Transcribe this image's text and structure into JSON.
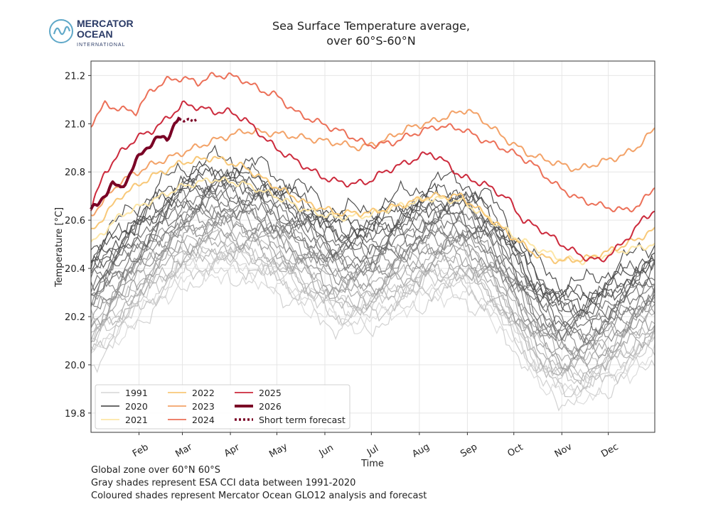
{
  "logo": {
    "line1": "MERCATOR",
    "line2": "OCEAN",
    "line3": "INTERNATIONAL",
    "color": "#2a3a66",
    "mark_color": "#5fa8c8"
  },
  "footnotes": [
    "Global zone over 60°N 60°S",
    "Gray shades represent ESA CCI data between 1991-2020",
    "Coloured shades represent Mercator Ocean GLO12 analysis and forecast"
  ],
  "chart_data": {
    "type": "line",
    "title": "Sea Surface Temperature average,",
    "subtitle": "over 60°S-60°N",
    "xlabel": "Time",
    "ylabel": "Temperature [°C]",
    "x_unit": "day of year",
    "xlim": [
      1,
      365
    ],
    "ylim": [
      19.72,
      21.26
    ],
    "yticks": [
      19.8,
      20.0,
      20.2,
      20.4,
      20.6,
      20.8,
      21.0,
      21.2
    ],
    "months": [
      {
        "label": "Feb",
        "day": 32
      },
      {
        "label": "Mar",
        "day": 60
      },
      {
        "label": "Apr",
        "day": 91
      },
      {
        "label": "May",
        "day": 121
      },
      {
        "label": "Jun",
        "day": 152
      },
      {
        "label": "Jul",
        "day": 182
      },
      {
        "label": "Aug",
        "day": 213
      },
      {
        "label": "Sep",
        "day": 244
      },
      {
        "label": "Oct",
        "day": 274
      },
      {
        "label": "Nov",
        "day": 305
      },
      {
        "label": "Dec",
        "day": 335
      }
    ],
    "grid": true,
    "legend_position": "lower-left",
    "legend": [
      {
        "label": "1991",
        "color": "#dcdcdc",
        "style": "solid"
      },
      {
        "label": "2020",
        "color": "#555555",
        "style": "solid"
      },
      {
        "label": "2021",
        "color": "#fde6a6",
        "style": "solid"
      },
      {
        "label": "2022",
        "color": "#f8c878",
        "style": "solid"
      },
      {
        "label": "2023",
        "color": "#f3a268",
        "style": "solid"
      },
      {
        "label": "2024",
        "color": "#ec7058",
        "style": "solid"
      },
      {
        "label": "2025",
        "color": "#cc2a3c",
        "style": "solid"
      },
      {
        "label": "2026",
        "color": "#7a0025",
        "style": "thick"
      },
      {
        "label": "Short term forecast",
        "color": "#7a0025",
        "style": "dotted"
      }
    ],
    "gray_years": {
      "first_year": 1991,
      "last_year": 2020,
      "color_start": "#dcdcdc",
      "color_end": "#4a4a4a",
      "jan1_start": 20.02,
      "jan1_end": 20.46,
      "seasonal_profile": {
        "x": [
          1,
          30,
          60,
          85,
          110,
          140,
          160,
          180,
          200,
          222,
          240,
          260,
          275,
          290,
          305,
          320,
          335,
          350,
          365
        ],
        "y": [
          0.0,
          0.17,
          0.33,
          0.37,
          0.34,
          0.23,
          0.15,
          0.15,
          0.21,
          0.27,
          0.28,
          0.19,
          0.06,
          -0.08,
          -0.15,
          -0.15,
          -0.1,
          -0.04,
          0.02
        ]
      }
    },
    "series": [
      {
        "name": "2021",
        "color": "#fde6a6",
        "x": [
          1,
          20,
          40,
          60,
          80,
          100,
          120,
          140,
          160,
          180,
          200,
          220,
          240,
          260,
          275,
          290,
          305,
          320,
          335,
          350,
          365
        ],
        "y": [
          20.5,
          20.62,
          20.68,
          20.74,
          20.77,
          20.75,
          20.7,
          20.64,
          20.61,
          20.62,
          20.66,
          20.69,
          20.68,
          20.6,
          20.53,
          20.48,
          20.44,
          20.43,
          20.46,
          20.48,
          20.5
        ]
      },
      {
        "name": "2022",
        "color": "#f8c878",
        "x": [
          1,
          20,
          40,
          60,
          80,
          100,
          120,
          140,
          160,
          180,
          200,
          220,
          240,
          260,
          275,
          290,
          305,
          320,
          335,
          350,
          365
        ],
        "y": [
          20.55,
          20.7,
          20.78,
          20.84,
          20.86,
          20.82,
          20.74,
          20.67,
          20.63,
          20.63,
          20.66,
          20.7,
          20.7,
          20.6,
          20.52,
          20.45,
          20.43,
          20.44,
          20.47,
          20.51,
          20.56
        ]
      },
      {
        "name": "2023",
        "color": "#f3a268",
        "x": [
          1,
          20,
          40,
          60,
          80,
          100,
          120,
          140,
          160,
          175,
          190,
          205,
          222,
          235,
          244,
          255,
          270,
          285,
          300,
          315,
          330,
          345,
          355,
          365
        ],
        "y": [
          20.62,
          20.76,
          20.83,
          20.88,
          20.93,
          20.97,
          20.96,
          20.94,
          20.92,
          20.9,
          20.93,
          20.98,
          21.01,
          21.04,
          21.06,
          21.01,
          20.93,
          20.87,
          20.84,
          20.81,
          20.84,
          20.87,
          20.91,
          20.98
        ]
      },
      {
        "name": "2024",
        "color": "#ec7058",
        "x": [
          1,
          10,
          20,
          30,
          40,
          50,
          60,
          70,
          80,
          90,
          100,
          110,
          120,
          135,
          150,
          165,
          180,
          195,
          210,
          225,
          240,
          255,
          270,
          285,
          300,
          315,
          330,
          345,
          355,
          365
        ],
        "y": [
          21.0,
          21.08,
          21.06,
          21.05,
          21.14,
          21.18,
          21.19,
          21.17,
          21.2,
          21.2,
          21.18,
          21.14,
          21.12,
          21.04,
          21.0,
          20.96,
          20.91,
          20.92,
          20.96,
          20.99,
          20.98,
          20.93,
          20.89,
          20.84,
          20.75,
          20.69,
          20.66,
          20.64,
          20.66,
          20.74
        ]
      },
      {
        "name": "2025",
        "color": "#cc2a3c",
        "x": [
          1,
          10,
          20,
          30,
          40,
          50,
          60,
          70,
          80,
          90,
          100,
          110,
          120,
          135,
          150,
          160,
          170,
          180,
          190,
          205,
          220,
          230,
          240,
          255,
          270,
          280,
          292,
          305,
          318,
          330,
          342,
          352,
          358,
          365
        ],
        "y": [
          20.65,
          20.8,
          20.88,
          20.94,
          20.97,
          21.02,
          21.08,
          21.07,
          21.05,
          21.05,
          21.02,
          20.96,
          20.9,
          20.84,
          20.78,
          20.76,
          20.75,
          20.76,
          20.8,
          20.84,
          20.88,
          20.84,
          20.78,
          20.75,
          20.69,
          20.6,
          20.56,
          20.5,
          20.45,
          20.43,
          20.49,
          20.56,
          20.61,
          20.64
        ]
      },
      {
        "name": "2026",
        "color": "#7a0025",
        "thick": true,
        "x": [
          1,
          5,
          10,
          15,
          20,
          25,
          30,
          35,
          40,
          45,
          50,
          55,
          58
        ],
        "y": [
          20.64,
          20.66,
          20.71,
          20.75,
          20.73,
          20.78,
          20.84,
          20.89,
          20.92,
          20.94,
          20.94,
          21.0,
          21.02
        ]
      },
      {
        "name": "Short term forecast",
        "color": "#7a0025",
        "dotted": true,
        "x": [
          58,
          61,
          64,
          67,
          70
        ],
        "y": [
          21.02,
          21.01,
          21.02,
          21.01,
          21.02
        ]
      }
    ]
  }
}
